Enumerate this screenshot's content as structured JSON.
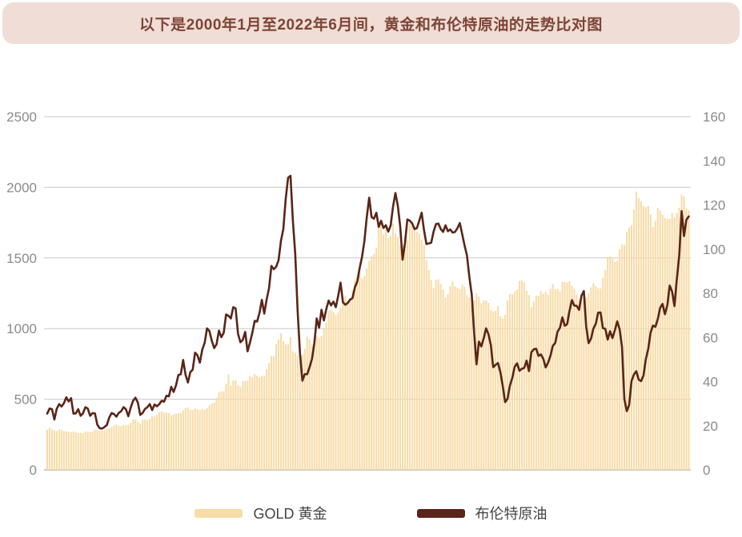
{
  "title": "以下是2000年1月至2022年6月间，黄金和布伦特原油的走势比对图",
  "colors": {
    "page_bg": "#ffffff",
    "banner_bg": "#f0ddd5",
    "banner_text": "#7d4437",
    "gold_bar": "#f8dba6",
    "brent_line": "#5a2518",
    "grid": "#c9c9c9",
    "axis_line": "#999999",
    "tick_text": "#8b8b8b",
    "legend_text": "#444444"
  },
  "legend": {
    "items": [
      {
        "label": "GOLD 黄金",
        "series": "gold"
      },
      {
        "label": "布伦特原油",
        "series": "brent"
      }
    ]
  },
  "chart_data": {
    "type": "bar",
    "subtype": "dual-axis bar+line, monthly points",
    "title": "以下是2000年1月至2022年6月间，黄金和布伦特原油的走势比对图",
    "x_start": "2000-01",
    "x_end": "2022-06",
    "points": 270,
    "grid": "horizontal lines at left-axis ticks only",
    "legend_position": "bottom-center",
    "left_axis": {
      "label": "",
      "range": [
        0,
        2500
      ],
      "ticks": [
        0,
        500,
        1000,
        1500,
        2000,
        2500
      ],
      "series": "gold"
    },
    "right_axis": {
      "label": "",
      "range": [
        0,
        160
      ],
      "ticks": [
        0,
        20,
        40,
        60,
        80,
        100,
        120,
        140,
        160
      ],
      "series": "brent"
    },
    "series": [
      {
        "name": "GOLD 黄金",
        "type": "bar",
        "axis": "left",
        "color": "#f8dba6",
        "values": [
          284,
          300,
          286,
          280,
          275,
          286,
          281,
          274,
          274,
          270,
          266,
          272,
          265,
          262,
          263,
          260,
          272,
          270,
          268,
          272,
          284,
          283,
          276,
          276,
          281,
          295,
          294,
          302,
          314,
          321,
          313,
          310,
          319,
          317,
          319,
          333,
          357,
          359,
          340,
          328,
          355,
          356,
          351,
          360,
          379,
          379,
          390,
          407,
          414,
          405,
          406,
          403,
          383,
          392,
          398,
          400,
          405,
          420,
          439,
          442,
          424,
          423,
          434,
          429,
          422,
          431,
          424,
          438,
          456,
          470,
          476,
          510,
          550,
          555,
          557,
          611,
          676,
          596,
          634,
          632,
          598,
          586,
          627,
          629,
          631,
          665,
          655,
          679,
          667,
          656,
          665,
          665,
          713,
          755,
          806,
          803,
          890,
          922,
          968,
          910,
          889,
          889,
          940,
          839,
          829,
          807,
          760,
          816,
          858,
          943,
          924,
          890,
          929,
          946,
          934,
          949,
          997,
          1043,
          1127,
          1134,
          1118,
          1095,
          1113,
          1149,
          1205,
          1233,
          1193,
          1216,
          1271,
          1342,
          1370,
          1390,
          1356,
          1373,
          1424,
          1480,
          1513,
          1529,
          1573,
          1756,
          1772,
          1666,
          1739,
          1640,
          1656,
          1743,
          1674,
          1650,
          1586,
          1597,
          1594,
          1626,
          1744,
          1747,
          1722,
          1685,
          1671,
          1628,
          1593,
          1485,
          1414,
          1343,
          1287,
          1347,
          1348,
          1316,
          1276,
          1221,
          1244,
          1301,
          1336,
          1299,
          1288,
          1279,
          1311,
          1295,
          1237,
          1222,
          1176,
          1201,
          1251,
          1227,
          1179,
          1198,
          1199,
          1182,
          1130,
          1118,
          1125,
          1159,
          1086,
          1068,
          1098,
          1200,
          1246,
          1242,
          1261,
          1276,
          1337,
          1340,
          1327,
          1267,
          1238,
          1152,
          1192,
          1234,
          1231,
          1266,
          1246,
          1260,
          1237,
          1283,
          1315,
          1280,
          1282,
          1264,
          1331,
          1330,
          1325,
          1335,
          1303,
          1282,
          1238,
          1202,
          1198,
          1215,
          1221,
          1250,
          1292,
          1320,
          1301,
          1286,
          1284,
          1359,
          1413,
          1499,
          1511,
          1495,
          1471,
          1480,
          1561,
          1597,
          1592,
          1683,
          1716,
          1732,
          1843,
          1969,
          1922,
          1900,
          1866,
          1858,
          1867,
          1808,
          1718,
          1762,
          1853,
          1835,
          1807,
          1784,
          1777,
          1777,
          1820,
          1787,
          1817,
          1856,
          1948,
          1937,
          1850,
          1836
        ]
      },
      {
        "name": "布伦特原油",
        "type": "line",
        "axis": "right",
        "color": "#5a2518",
        "values": [
          25.5,
          27.8,
          27.5,
          22.8,
          27.7,
          29.8,
          28.7,
          30.2,
          32.9,
          31.0,
          32.5,
          25.5,
          25.6,
          27.5,
          24.5,
          25.6,
          28.4,
          27.8,
          24.5,
          25.7,
          25.6,
          20.5,
          18.9,
          18.7,
          19.4,
          20.3,
          23.7,
          25.7,
          25.3,
          24.1,
          25.8,
          26.6,
          28.4,
          27.5,
          24.3,
          28.2,
          31.3,
          32.7,
          30.5,
          24.9,
          25.8,
          27.6,
          28.4,
          29.8,
          27.1,
          29.6,
          28.8,
          29.8,
          31.3,
          30.9,
          33.6,
          33.3,
          37.6,
          35.3,
          38.3,
          43.0,
          43.3,
          49.8,
          43.1,
          39.6,
          44.3,
          45.4,
          53.1,
          51.9,
          48.6,
          54.4,
          57.5,
          64.1,
          62.9,
          58.5,
          55.2,
          56.9,
          63.1,
          60.1,
          62.1,
          70.4,
          69.8,
          68.6,
          73.7,
          73.1,
          61.7,
          57.8,
          58.9,
          62.5,
          53.7,
          57.6,
          62.1,
          67.5,
          67.2,
          71.1,
          77.0,
          70.8,
          77.2,
          82.3,
          92.4,
          90.9,
          92.0,
          95.0,
          103.7,
          109.1,
          122.8,
          132.3,
          133.2,
          113.0,
          97.7,
          71.9,
          52.5,
          40.4,
          43.4,
          43.3,
          46.5,
          50.2,
          57.3,
          68.6,
          64.4,
          72.5,
          67.7,
          72.8,
          76.7,
          74.5,
          76.2,
          73.7,
          78.8,
          84.8,
          75.9,
          74.8,
          75.6,
          77.1,
          77.8,
          82.7,
          85.3,
          91.4,
          96.5,
          103.7,
          114.6,
          123.3,
          114.5,
          113.8,
          116.5,
          110.1,
          112.8,
          109.6,
          110.8,
          107.9,
          110.7,
          119.3,
          125.4,
          119.7,
          110.3,
          95.2,
          102.6,
          113.4,
          112.9,
          111.7,
          109.1,
          109.5,
          112.9,
          116.5,
          108.5,
          102.3,
          102.6,
          102.9,
          107.9,
          111.3,
          111.6,
          109.1,
          107.8,
          110.8,
          108.1,
          108.9,
          107.5,
          107.8,
          109.5,
          111.8,
          106.8,
          101.6,
          97.1,
          87.4,
          79.4,
          62.3,
          47.8,
          58.1,
          55.9,
          59.5,
          64.1,
          61.5,
          56.6,
          46.5,
          47.6,
          48.4,
          44.3,
          38.0,
          30.7,
          32.2,
          38.2,
          41.6,
          46.7,
          48.3,
          44.9,
          45.8,
          46.2,
          49.5,
          44.7,
          53.3,
          54.6,
          54.9,
          51.6,
          52.3,
          50.3,
          46.4,
          48.5,
          51.7,
          56.2,
          57.5,
          62.7,
          64.4,
          69.1,
          65.3,
          66.0,
          72.1,
          76.9,
          74.4,
          74.3,
          72.5,
          78.9,
          81.0,
          64.8,
          57.4,
          59.4,
          64.0,
          66.1,
          71.2,
          71.3,
          64.2,
          63.9,
          59.0,
          62.8,
          59.7,
          63.2,
          67.3,
          63.7,
          55.7,
          32.0,
          26.6,
          29.4,
          40.3,
          43.2,
          44.7,
          40.9,
          40.2,
          42.7,
          50.2,
          54.8,
          62.3,
          65.4,
          64.8,
          68.3,
          73.4,
          75.2,
          70.5,
          74.5,
          83.5,
          80.8,
          74.2,
          86.5,
          97.1,
          117.2,
          105.9,
          113.3,
          114.8
        ]
      }
    ]
  }
}
